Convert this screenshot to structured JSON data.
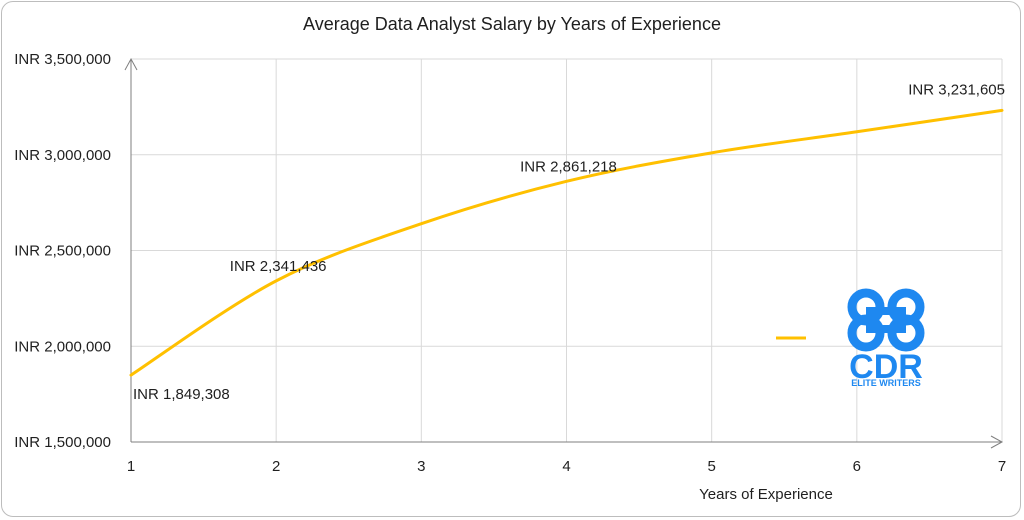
{
  "chart_data": {
    "type": "line",
    "title": "Average Data Analyst Salary by Years of Experience",
    "xlabel": "Years of Experience",
    "ylabel": "",
    "x": [
      1,
      2,
      3,
      4,
      5,
      6,
      7
    ],
    "xlim": [
      1,
      7
    ],
    "ylim": [
      1500000,
      3500000
    ],
    "y_ticks": [
      1500000,
      2000000,
      2500000,
      3000000,
      3500000
    ],
    "y_tick_labels": [
      "INR 1,500,000",
      "INR 2,000,000",
      "INR 2,500,000",
      "INR 3,000,000",
      "INR 3,500,000"
    ],
    "x_tick_labels": [
      "1",
      "2",
      "3",
      "4",
      "5",
      "6",
      "7"
    ],
    "grid": true,
    "series": [
      {
        "values": [
          1849308,
          2341436,
          2640000,
          2861218,
          3010000,
          3120000,
          3231605
        ],
        "color": "#FFC000"
      }
    ],
    "data_labels": [
      {
        "x": 1,
        "y": 1849308,
        "text": "INR 1,849,308"
      },
      {
        "x": 2,
        "y": 2341436,
        "text": "INR 2,341,436"
      },
      {
        "x": 4,
        "y": 2861218,
        "text": "INR 2,861,218"
      },
      {
        "x": 7,
        "y": 3231605,
        "text": "INR 3,231,605"
      }
    ],
    "legend": "right"
  },
  "logo": {
    "text": "CDR",
    "subtext": "ELITE WRITERS",
    "color": "#1E88F0",
    "navy": "#0B2A66"
  }
}
